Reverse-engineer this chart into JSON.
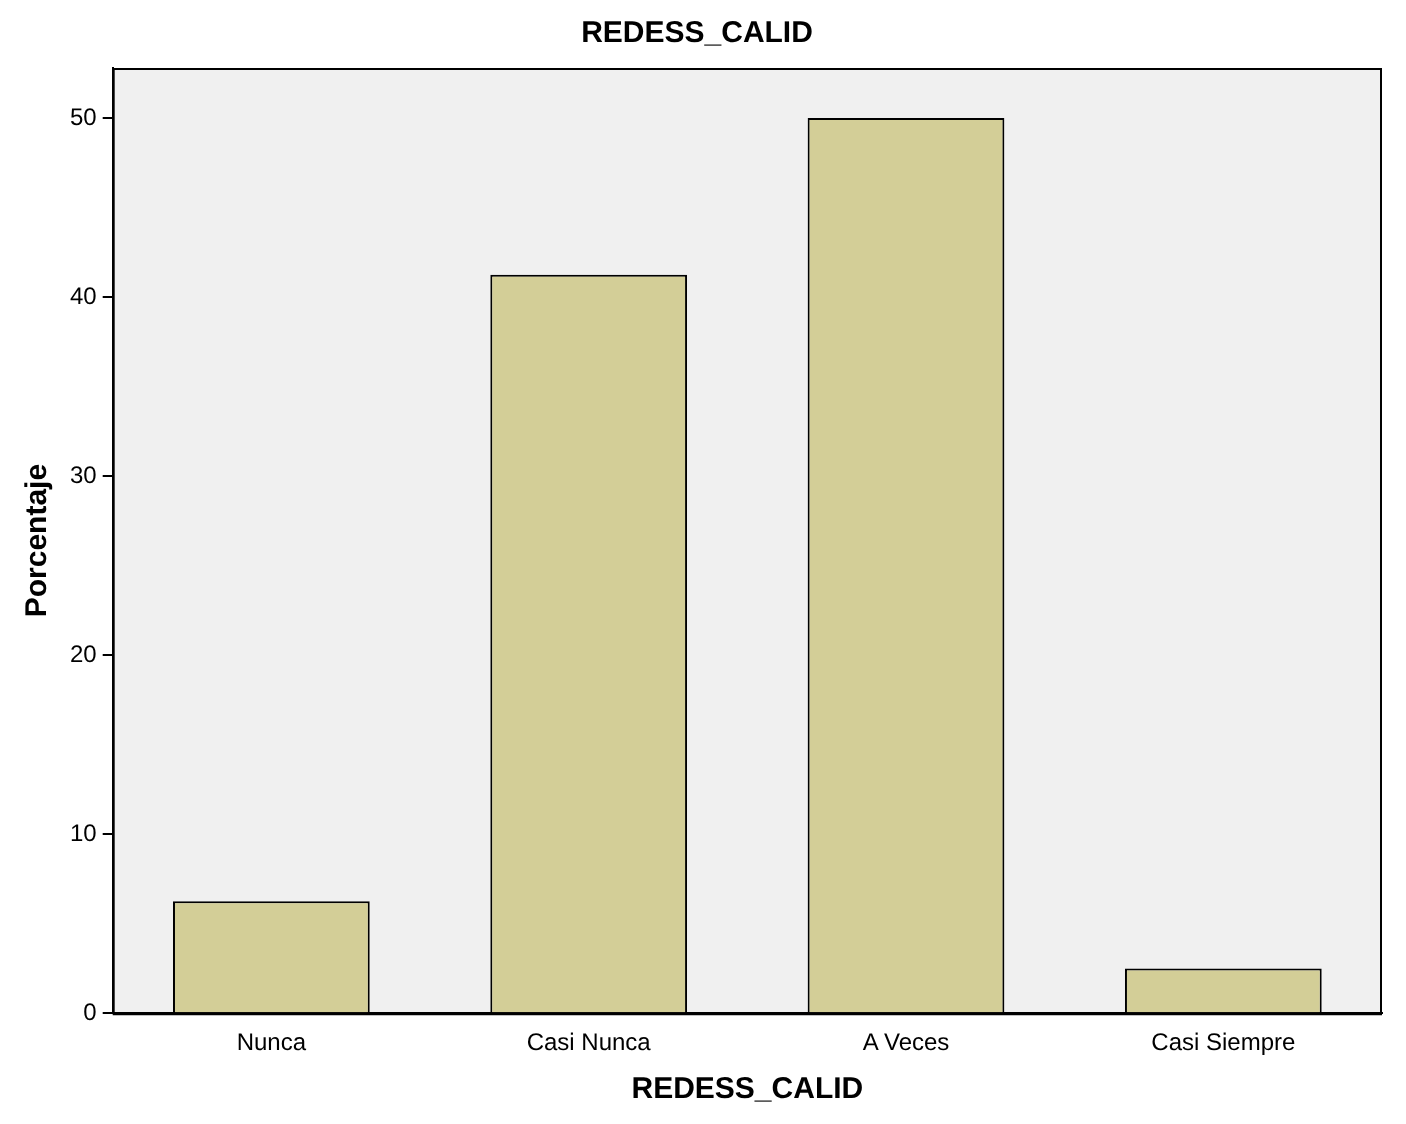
{
  "chart_data": {
    "type": "bar",
    "title": "REDESS_CALID",
    "xlabel": "REDESS_CALID",
    "ylabel": "Porcentaje",
    "categories": [
      "Nunca",
      "Casi Nunca",
      "A Veces",
      "Casi Siempre"
    ],
    "values": [
      6.25,
      41.25,
      50,
      2.5
    ],
    "color": "#d3ce97",
    "ylim": [
      0,
      52.8
    ],
    "yticks": [
      0,
      10,
      20,
      30,
      40,
      50
    ],
    "grid": false
  }
}
